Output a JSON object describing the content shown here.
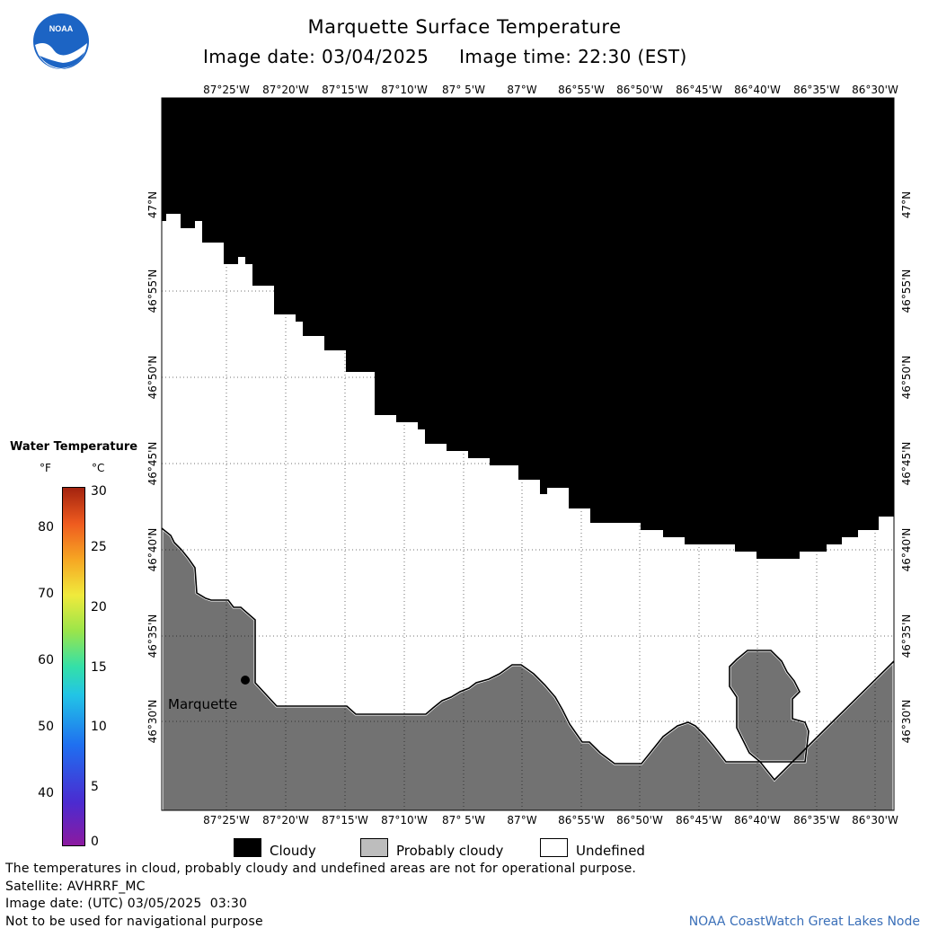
{
  "header": {
    "title": "Marquette Surface Temperature",
    "image_date": "Image date: 03/04/2025",
    "image_time": "Image time: 22:30 (EST)"
  },
  "logo": {
    "text": "NOAA",
    "icon": "noaa-logo"
  },
  "map": {
    "lon_labels": [
      "87°25'W",
      "87°20'W",
      "87°15'W",
      "87°10'W",
      "87° 5'W",
      "87°W",
      "86°55'W",
      "86°50'W",
      "86°45'W",
      "86°40'W",
      "86°35'W",
      "86°30'W"
    ],
    "lat_labels": [
      "47°N",
      "46°55'N",
      "46°50'N",
      "46°45'N",
      "46°40'N",
      "46°35'N",
      "46°30'N"
    ],
    "city_label": "Marquette",
    "colors": {
      "cloudy": "#000000",
      "probably_cloudy": "#727272",
      "undefined": "#ffffff"
    }
  },
  "color_scale": {
    "title": "Water Temperature",
    "unit_f": "°F",
    "unit_c": "°C",
    "f_ticks": [
      "80",
      "70",
      "60",
      "50",
      "40"
    ],
    "c_ticks": [
      "30",
      "25",
      "20",
      "15",
      "10",
      "5",
      "0"
    ]
  },
  "legend": {
    "cloudy": "Cloudy",
    "probably_cloudy": "Probably cloudy",
    "undefined": "Undefined"
  },
  "footer": {
    "disclaimer": "The temperatures in cloud, probably cloudy and undefined areas are not for operational purpose.",
    "satellite": "Satellite: AVHRRF_MC",
    "utc_date": "Image date: (UTC) 03/05/2025  03:30",
    "navigation": "Not to be used for navigational purpose",
    "credit": "NOAA CoastWatch Great Lakes Node"
  }
}
